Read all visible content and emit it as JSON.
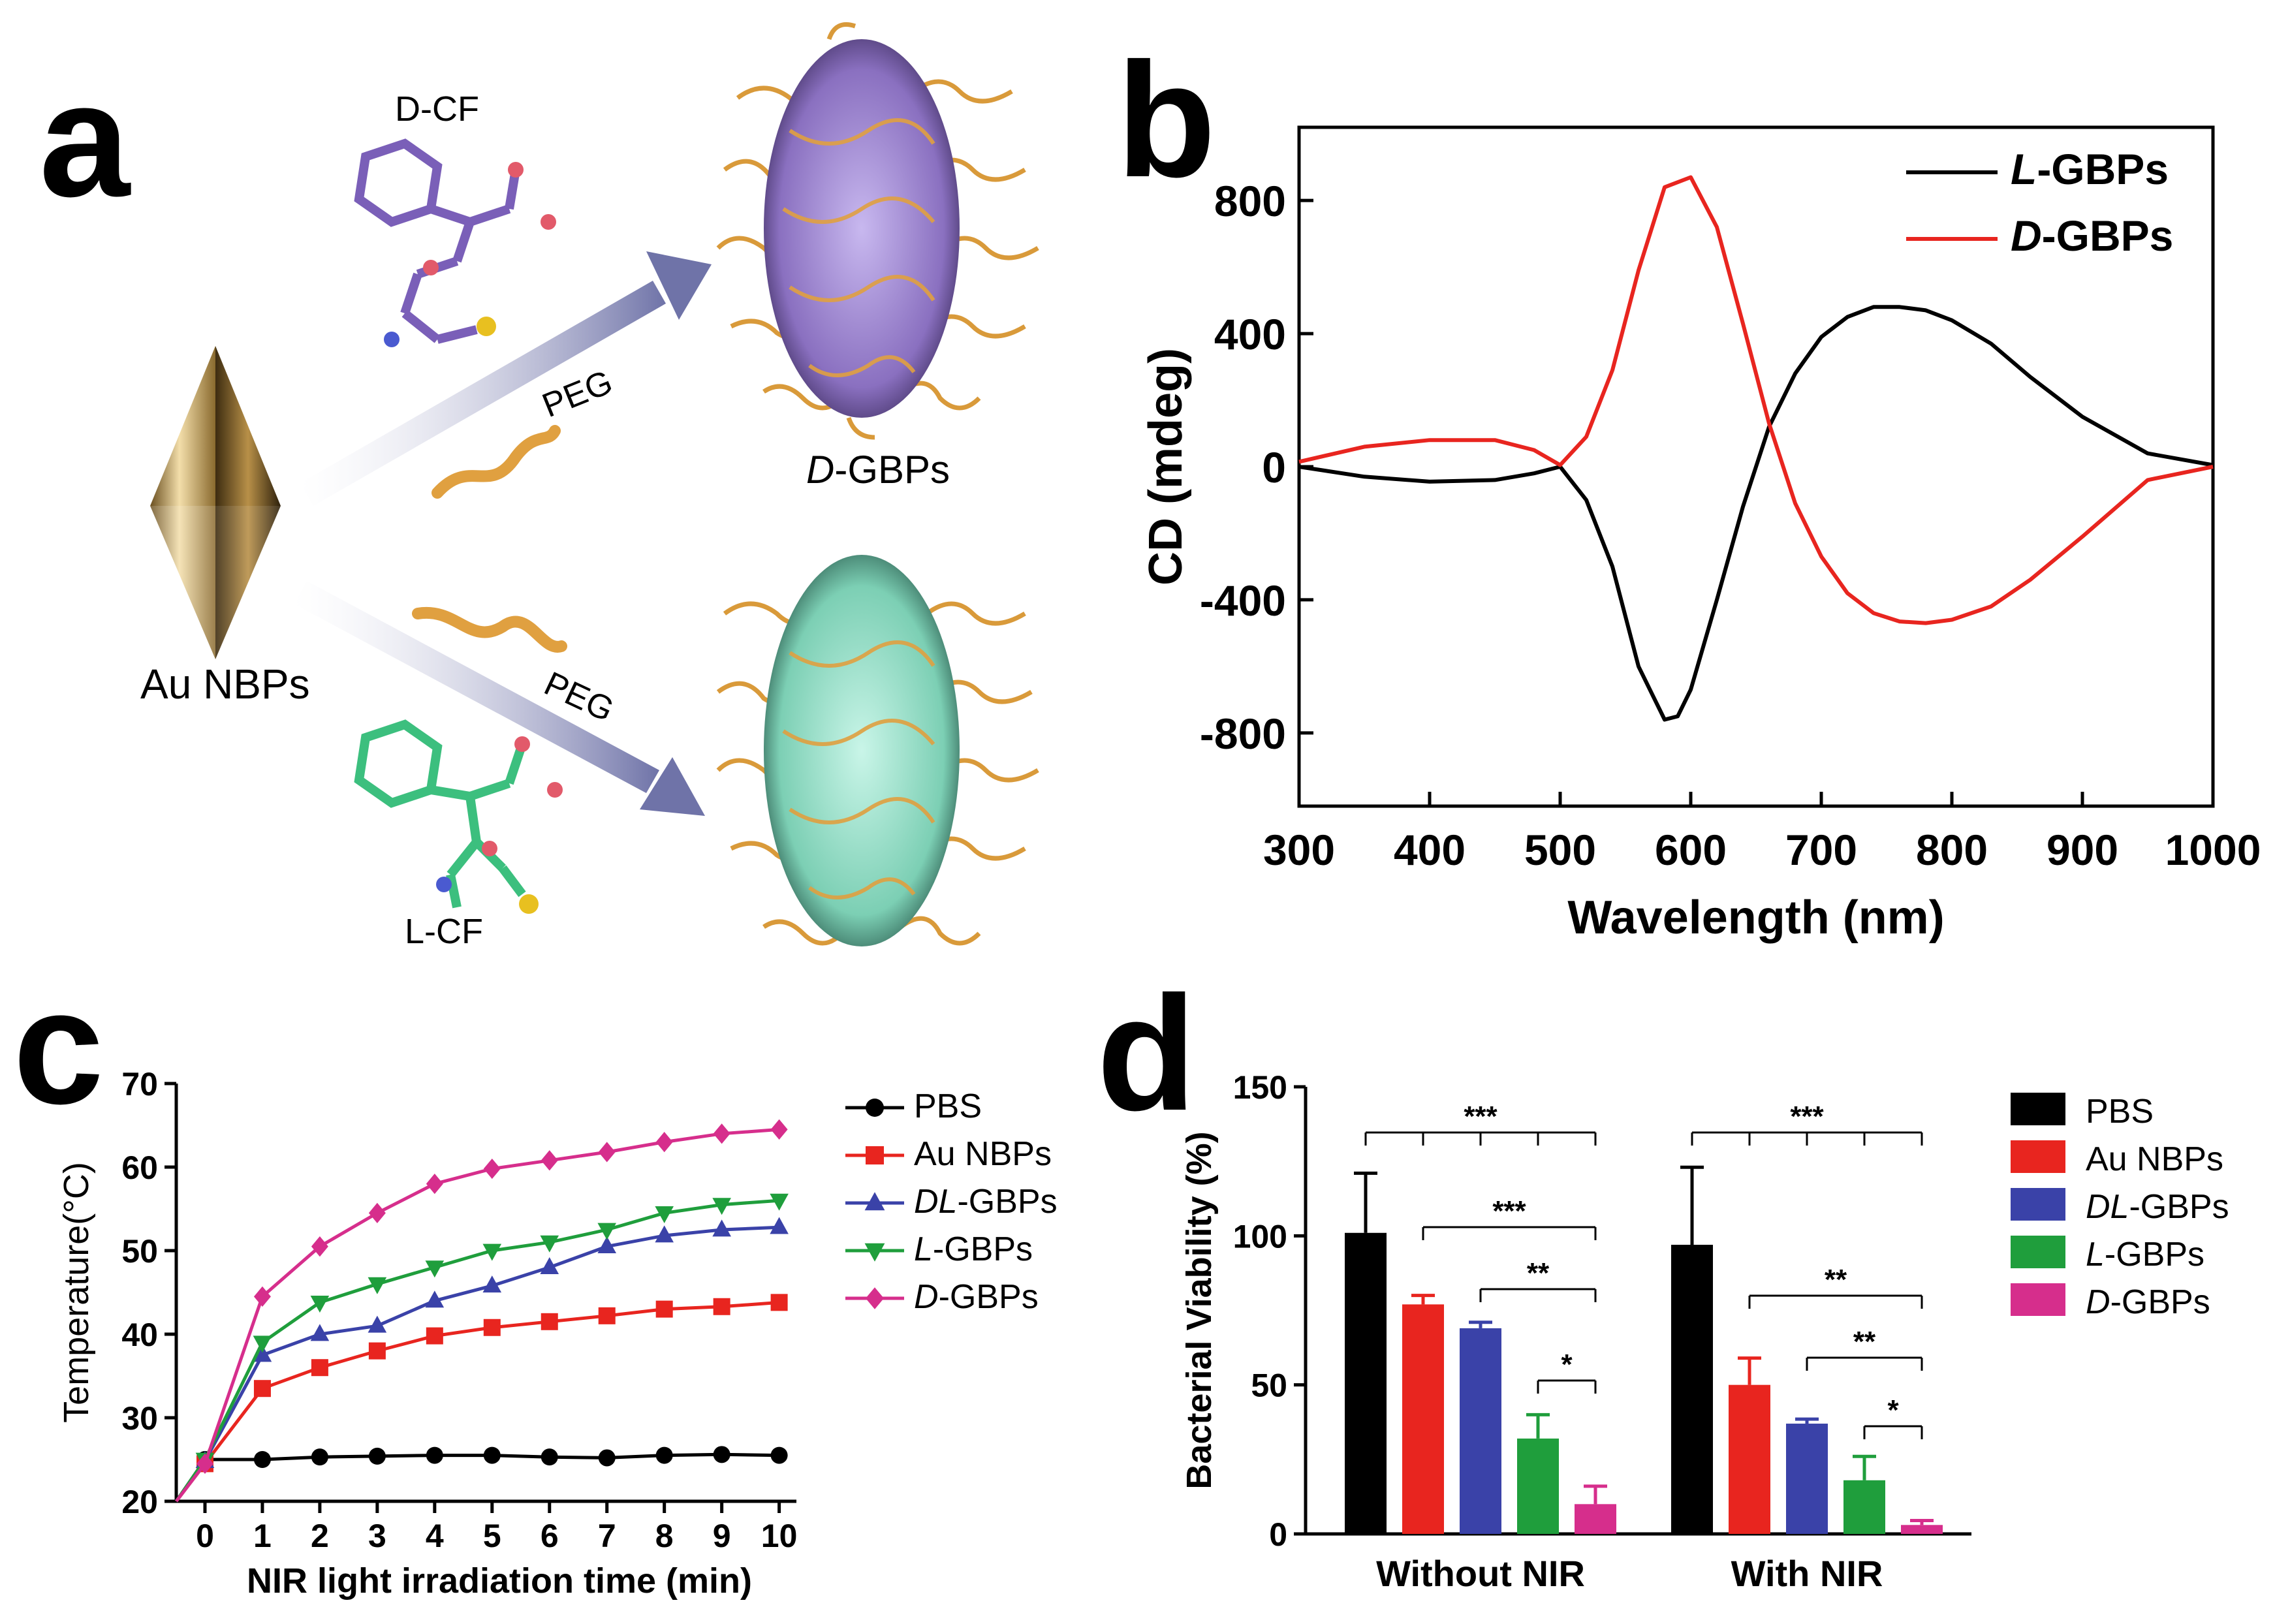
{
  "panels": {
    "a": {
      "letter": "a",
      "molecule_top": "D-CF",
      "molecule_bottom": "L-CF",
      "peg_top": "PEG",
      "peg_bottom": "PEG",
      "source_label": "Au NBPs",
      "product_top_italic": "D",
      "product_top_rest": "-GBPs",
      "colors": {
        "gold": "#c9a55a",
        "purple": "#9b86c8",
        "teal": "#8fd9c2",
        "chain": "#e0a040",
        "arrow": "#8f93c0"
      }
    },
    "b": {
      "letter": "b"
    },
    "c": {
      "letter": "c"
    },
    "d": {
      "letter": "d"
    }
  },
  "chart_data": [
    {
      "id": "b",
      "type": "line",
      "xlabel": "Wavelength (nm)",
      "ylabel": "CD (mdeg)",
      "xlim": [
        300,
        1000
      ],
      "ylim": [
        -1020,
        1020
      ],
      "xticks": [
        300,
        400,
        500,
        600,
        700,
        800,
        900,
        1000
      ],
      "yticks": [
        800,
        400,
        0,
        -400,
        -800
      ],
      "legend_position": "top-right",
      "series": [
        {
          "name_italic": "L",
          "name_rest": "-GBPs",
          "color": "#000000",
          "x": [
            300,
            350,
            400,
            450,
            480,
            500,
            520,
            540,
            560,
            580,
            590,
            600,
            620,
            640,
            660,
            680,
            700,
            720,
            740,
            760,
            780,
            800,
            830,
            860,
            900,
            950,
            1000
          ],
          "y": [
            0,
            -30,
            -45,
            -40,
            -20,
            0,
            -100,
            -300,
            -600,
            -760,
            -750,
            -670,
            -400,
            -120,
            120,
            280,
            390,
            450,
            480,
            480,
            470,
            440,
            370,
            270,
            150,
            40,
            5
          ]
        },
        {
          "name_italic": "D",
          "name_rest": "-GBPs",
          "color": "#e8251f",
          "x": [
            300,
            350,
            400,
            450,
            480,
            500,
            520,
            540,
            560,
            580,
            600,
            620,
            640,
            660,
            680,
            700,
            720,
            740,
            760,
            780,
            800,
            830,
            860,
            900,
            950,
            1000
          ],
          "y": [
            15,
            60,
            80,
            80,
            50,
            5,
            90,
            290,
            590,
            840,
            870,
            720,
            430,
            130,
            -110,
            -270,
            -380,
            -440,
            -465,
            -470,
            -460,
            -420,
            -340,
            -210,
            -40,
            0
          ]
        }
      ]
    },
    {
      "id": "c",
      "type": "line",
      "xlabel": "NIR light irradiation time (min)",
      "ylabel": "Temperature(°C)",
      "xlim": [
        -0.5,
        10.3
      ],
      "ylim": [
        20,
        70
      ],
      "xticks": [
        0,
        1,
        2,
        3,
        4,
        5,
        6,
        7,
        8,
        9,
        10
      ],
      "yticks": [
        20,
        30,
        40,
        50,
        60,
        70
      ],
      "legend_position": "right",
      "series": [
        {
          "name": "PBS",
          "marker": "circle",
          "color": "#000000",
          "x": [
            0,
            1,
            2,
            3,
            4,
            5,
            6,
            7,
            8,
            9,
            10
          ],
          "y": [
            25.0,
            25.0,
            25.3,
            25.4,
            25.5,
            25.5,
            25.3,
            25.2,
            25.5,
            25.6,
            25.5
          ]
        },
        {
          "name": "Au NBPs",
          "marker": "square",
          "color": "#e8251f",
          "x": [
            0,
            1,
            2,
            3,
            4,
            5,
            6,
            7,
            8,
            9,
            10
          ],
          "y": [
            24.5,
            33.5,
            36.0,
            38.0,
            39.8,
            40.8,
            41.5,
            42.2,
            43.0,
            43.3,
            43.8
          ]
        },
        {
          "name_italic": "DL",
          "name_rest": "-GBPs",
          "marker": "triangle-up",
          "color": "#3a42a8",
          "x": [
            0,
            1,
            2,
            3,
            4,
            5,
            6,
            7,
            8,
            9,
            10
          ],
          "y": [
            24.8,
            37.5,
            40.0,
            41.0,
            44.0,
            45.8,
            48.0,
            50.5,
            51.8,
            52.5,
            52.8
          ]
        },
        {
          "name_italic": "L",
          "name_rest": "-GBPs",
          "marker": "triangle-down",
          "color": "#1f9e3c",
          "x": [
            0,
            1,
            2,
            3,
            4,
            5,
            6,
            7,
            8,
            9,
            10
          ],
          "y": [
            25.0,
            39.0,
            43.8,
            46.0,
            48.0,
            50.0,
            51.0,
            52.5,
            54.5,
            55.5,
            56.0
          ]
        },
        {
          "name_italic": "D",
          "name_rest": "-GBPs",
          "marker": "diamond",
          "color": "#d62e8c",
          "x": [
            0,
            1,
            2,
            3,
            4,
            5,
            6,
            7,
            8,
            9,
            10
          ],
          "y": [
            24.5,
            44.5,
            50.5,
            54.5,
            58.0,
            59.8,
            60.8,
            61.8,
            63.0,
            64.0,
            64.5
          ]
        }
      ]
    },
    {
      "id": "d",
      "type": "bar",
      "ylabel": "Bacterial Viability (%)",
      "ylim": [
        0,
        150
      ],
      "yticks": [
        0,
        50,
        100,
        150
      ],
      "categories": [
        "Without NIR",
        "With  NIR"
      ],
      "legend_position": "right",
      "series": [
        {
          "name": "PBS",
          "color": "#000000",
          "values": [
            101,
            97
          ],
          "errors": [
            20,
            26
          ]
        },
        {
          "name": "Au NBPs",
          "color": "#e8251f",
          "values": [
            77,
            50
          ],
          "errors": [
            3,
            9
          ]
        },
        {
          "name_italic": "DL",
          "name_rest": "-GBPs",
          "color": "#3a42a8",
          "values": [
            69,
            37
          ],
          "errors": [
            2,
            1.5
          ]
        },
        {
          "name_italic": "L",
          "name_rest": "-GBPs",
          "color": "#1f9e3c",
          "values": [
            32,
            18
          ],
          "errors": [
            8,
            8
          ]
        },
        {
          "name_italic": "D",
          "name_rest": "-GBPs",
          "color": "#d62e8c",
          "values": [
            10,
            3
          ],
          "errors": [
            6,
            1.5
          ]
        }
      ],
      "significance": [
        {
          "group": 0,
          "from": 0,
          "to": 4,
          "ticks": [
            1,
            2,
            3
          ],
          "label": "***"
        },
        {
          "group": 0,
          "from": 1,
          "to": 4,
          "label": "***"
        },
        {
          "group": 0,
          "from": 2,
          "to": 4,
          "label": "**"
        },
        {
          "group": 0,
          "from": 3,
          "to": 4,
          "label": "*"
        },
        {
          "group": 1,
          "from": 0,
          "to": 4,
          "ticks": [
            1,
            2,
            3
          ],
          "label": "***"
        },
        {
          "group": 1,
          "from": 1,
          "to": 4,
          "label": "**"
        },
        {
          "group": 1,
          "from": 2,
          "to": 4,
          "label": "**"
        },
        {
          "group": 1,
          "from": 3,
          "to": 4,
          "label": "*"
        }
      ]
    }
  ]
}
